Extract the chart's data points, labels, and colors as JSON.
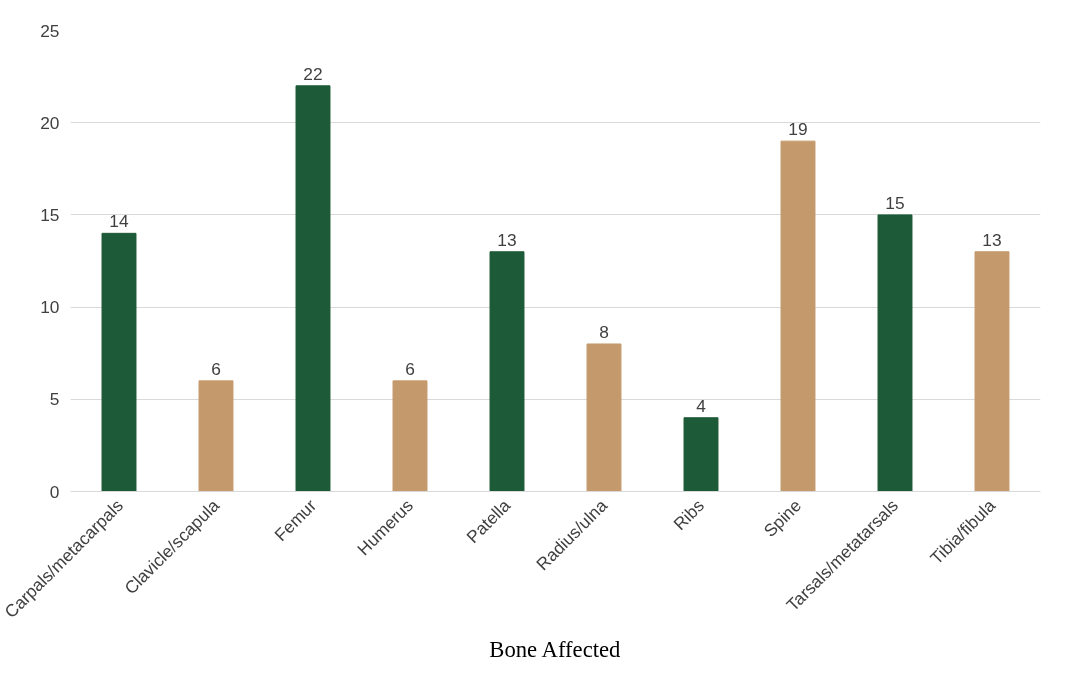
{
  "chart_data": {
    "type": "bar",
    "xlabel": "Bone Affected",
    "categories": [
      "Carpals/metacarpals",
      "Clavicle/scapula",
      "Femur",
      "Humerus",
      "Patella",
      "Radius/ulna",
      "Ribs",
      "Spine",
      "Tarsals/metatarsals",
      "Tibia/fibula"
    ],
    "values": [
      14,
      6,
      22,
      6,
      13,
      8,
      4,
      19,
      15,
      13
    ],
    "colors": [
      "#1d5a37",
      "#c49a6c",
      "#1d5a37",
      "#c49a6c",
      "#1d5a37",
      "#c49a6c",
      "#1d5a37",
      "#c49a6c",
      "#1d5a37",
      "#c49a6c"
    ],
    "ylim": [
      0,
      25
    ],
    "yticks": [
      0,
      5,
      10,
      15,
      20,
      25
    ],
    "grid": "y",
    "data_labels": true
  }
}
